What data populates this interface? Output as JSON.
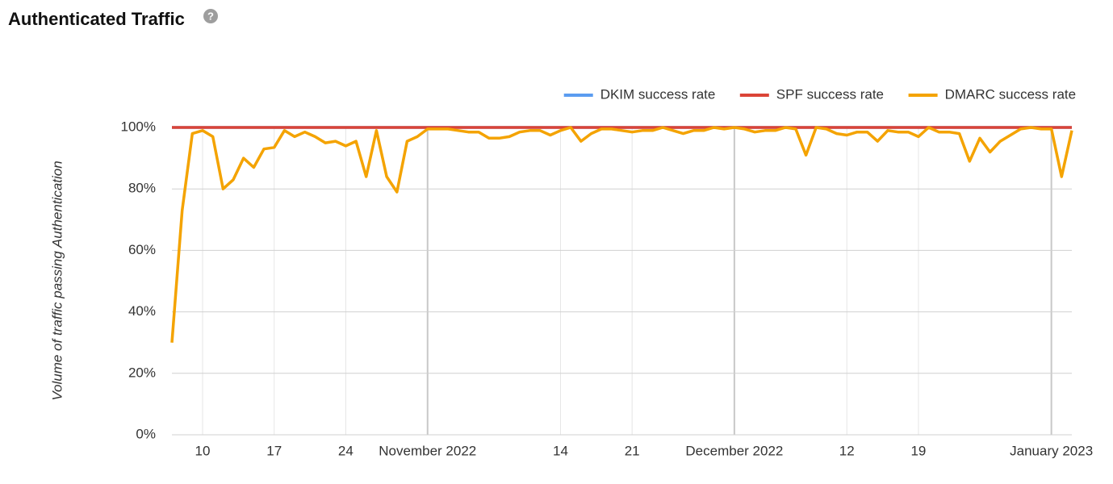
{
  "chart_data": {
    "type": "line",
    "title": "Authenticated Traffic",
    "y_label": "Volume of traffic passing Authentication",
    "categories": [
      null,
      null,
      null,
      "10",
      null,
      null,
      null,
      null,
      null,
      null,
      "17",
      null,
      null,
      null,
      null,
      null,
      null,
      "24",
      null,
      null,
      null,
      null,
      null,
      null,
      null,
      "November 2022",
      null,
      null,
      null,
      null,
      null,
      null,
      null,
      null,
      null,
      null,
      null,
      null,
      "14",
      null,
      null,
      null,
      null,
      null,
      null,
      "21",
      null,
      null,
      null,
      null,
      null,
      null,
      null,
      null,
      null,
      "December 2022",
      null,
      null,
      null,
      null,
      null,
      null,
      null,
      null,
      null,
      null,
      "12",
      null,
      null,
      null,
      null,
      null,
      null,
      "19",
      null,
      null,
      null,
      null,
      null,
      null,
      null,
      null,
      null,
      null,
      null,
      null,
      "January 2023",
      null,
      null
    ],
    "series": [
      {
        "name": "DKIM success rate",
        "color": "#5b9cf0",
        "values": [
          100,
          100,
          100,
          100,
          100,
          100,
          100,
          100,
          100,
          100,
          100,
          100,
          100,
          100,
          100,
          100,
          100,
          100,
          100,
          100,
          100,
          100,
          100,
          100,
          100,
          100,
          100,
          100,
          100,
          100,
          100,
          100,
          100,
          100,
          100,
          100,
          100,
          100,
          100,
          100,
          100,
          100,
          100,
          100,
          100,
          100,
          100,
          100,
          100,
          100,
          100,
          100,
          100,
          100,
          100,
          100,
          100,
          100,
          100,
          100,
          100,
          100,
          100,
          100,
          100,
          100,
          100,
          100,
          100,
          100,
          100,
          100,
          100,
          100,
          100,
          100,
          100,
          100,
          100,
          100,
          100,
          100,
          100,
          100,
          100,
          100,
          100,
          100,
          100
        ]
      },
      {
        "name": "SPF success rate",
        "color": "#db4437",
        "values": [
          100,
          100,
          100,
          100,
          100,
          100,
          100,
          100,
          100,
          100,
          100,
          100,
          100,
          100,
          100,
          100,
          100,
          100,
          100,
          100,
          100,
          100,
          100,
          100,
          100,
          100,
          100,
          100,
          100,
          100,
          100,
          100,
          100,
          100,
          100,
          100,
          100,
          100,
          100,
          100,
          100,
          100,
          100,
          100,
          100,
          100,
          100,
          100,
          100,
          100,
          100,
          100,
          100,
          100,
          100,
          100,
          100,
          100,
          100,
          100,
          100,
          100,
          100,
          100,
          100,
          100,
          100,
          100,
          100,
          100,
          100,
          100,
          100,
          100,
          100,
          100,
          100,
          100,
          100,
          100,
          100,
          100,
          100,
          100,
          100,
          100,
          100,
          100,
          100
        ]
      },
      {
        "name": "DMARC success rate",
        "color": "#f4a300",
        "values": [
          30,
          73,
          98,
          99,
          97,
          80,
          83,
          90,
          87,
          93,
          93.5,
          99,
          97,
          98.5,
          97,
          95,
          95.5,
          94,
          95.5,
          84,
          99,
          84,
          79,
          95.5,
          97,
          99.5,
          99.5,
          99.5,
          99,
          98.5,
          98.5,
          96.5,
          96.5,
          97,
          98.5,
          99,
          99,
          97.5,
          99,
          100,
          95.5,
          98,
          99.5,
          99.5,
          99,
          98.5,
          99,
          99,
          100,
          99,
          98,
          99,
          99,
          100,
          99.5,
          100,
          99.5,
          98.5,
          99,
          99,
          100,
          99.5,
          91,
          100,
          99.5,
          98,
          97.5,
          98.5,
          98.5,
          95.5,
          99,
          98.5,
          98.5,
          97,
          100,
          98.5,
          98.5,
          98,
          89,
          96.5,
          92,
          95.5,
          97.5,
          99.5,
          100,
          99.5,
          99.5,
          84,
          99
        ]
      }
    ],
    "ylim": [
      0,
      100
    ],
    "yticks": [
      {
        "value": 0,
        "label": "0%"
      },
      {
        "value": 20,
        "label": "20%"
      },
      {
        "value": 40,
        "label": "40%"
      },
      {
        "value": 60,
        "label": "60%"
      },
      {
        "value": 80,
        "label": "80%"
      },
      {
        "value": 100,
        "label": "100%"
      }
    ],
    "grid": true,
    "legend": "top-right"
  }
}
